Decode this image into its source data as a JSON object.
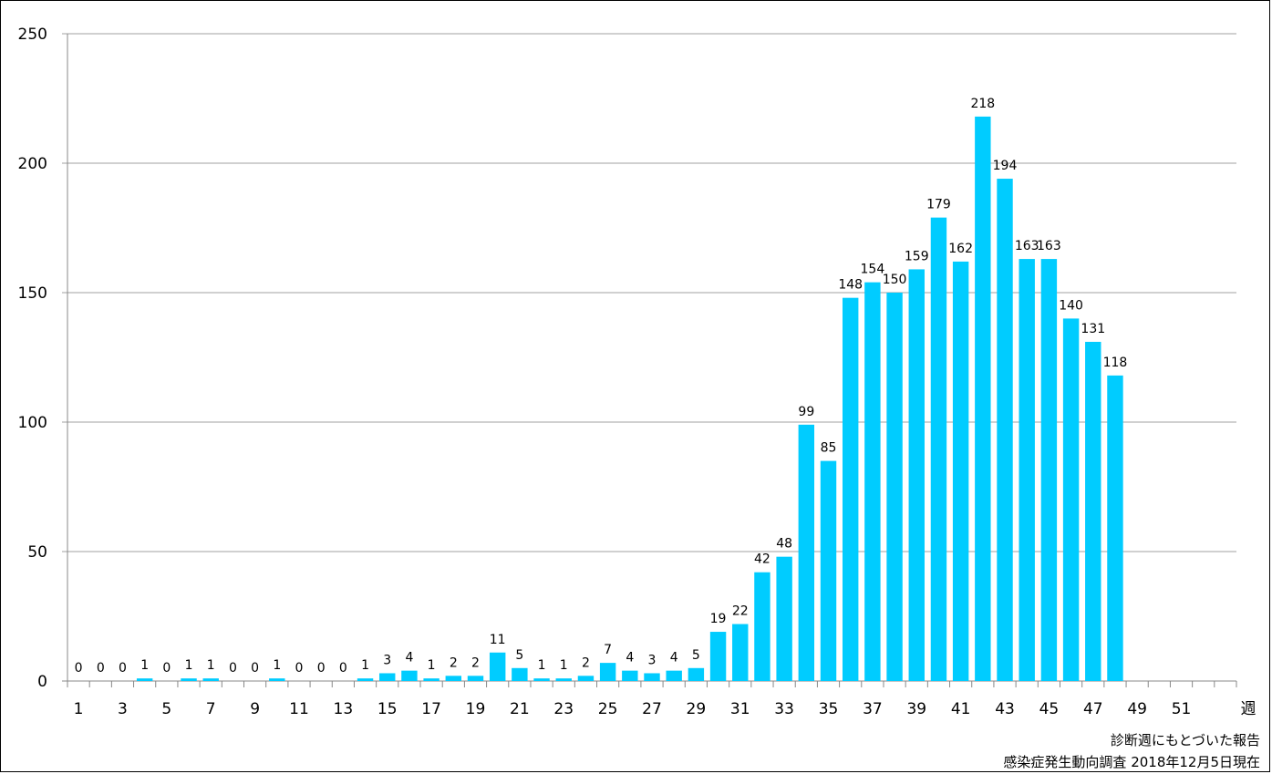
{
  "chart_data": {
    "type": "bar",
    "title": "",
    "xlabel": "週",
    "ylabel": "",
    "ylim": [
      0,
      250
    ],
    "yticks": [
      0,
      50,
      100,
      150,
      200,
      250
    ],
    "xtick_labels": [
      "1",
      "3",
      "5",
      "7",
      "9",
      "11",
      "13",
      "15",
      "17",
      "19",
      "21",
      "23",
      "25",
      "27",
      "29",
      "31",
      "33",
      "35",
      "37",
      "39",
      "41",
      "43",
      "45",
      "47",
      "49",
      "51"
    ],
    "weeks_shown": 53,
    "bar_color": "#00CCFF",
    "grid": true,
    "categories": [
      1,
      2,
      3,
      4,
      5,
      6,
      7,
      8,
      9,
      10,
      11,
      12,
      13,
      14,
      15,
      16,
      17,
      18,
      19,
      20,
      21,
      22,
      23,
      24,
      25,
      26,
      27,
      28,
      29,
      30,
      31,
      32,
      33,
      34,
      35,
      36,
      37,
      38,
      39,
      40,
      41,
      42,
      43,
      44,
      45,
      46,
      47,
      48
    ],
    "values": [
      0,
      0,
      0,
      1,
      0,
      1,
      1,
      0,
      0,
      1,
      0,
      0,
      0,
      1,
      3,
      4,
      1,
      2,
      2,
      11,
      5,
      1,
      1,
      2,
      7,
      4,
      3,
      4,
      5,
      19,
      22,
      42,
      48,
      99,
      85,
      148,
      154,
      150,
      159,
      179,
      162,
      218,
      194,
      163,
      163,
      140,
      131,
      118
    ],
    "data_labels": [
      "0",
      "0",
      "0",
      "1",
      "0",
      "1",
      "1",
      "0",
      "0",
      "1",
      "0",
      "0",
      "0",
      "1",
      "3",
      "4",
      "1",
      "2",
      "2",
      "11",
      "5",
      "1",
      "1",
      "2",
      "7",
      "4",
      "3",
      "4",
      "5",
      "19",
      "22",
      "42",
      "48",
      "99",
      "85",
      "148",
      "154",
      "150",
      "159",
      "179",
      "162",
      "218",
      "194",
      "163",
      "163",
      "140",
      "131",
      "118"
    ]
  },
  "notes": {
    "line1": "診断週にもとづいた報告",
    "line2": "感染症発生動向調査 2018年12月5日現在"
  }
}
